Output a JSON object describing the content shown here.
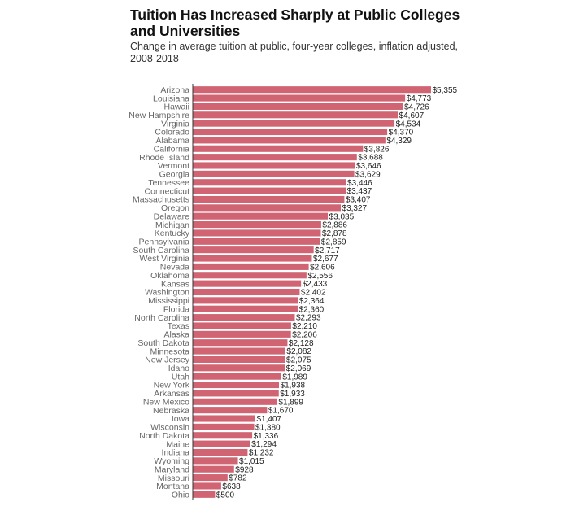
{
  "chart_data": {
    "type": "bar",
    "orientation": "horizontal",
    "title": "Tuition Has Increased Sharply at Public Colleges and Universities",
    "subtitle": "Change in average tuition at public, four-year colleges, inflation adjusted, 2008-2018",
    "xlabel": "",
    "ylabel": "",
    "value_prefix": "$",
    "bar_color": "#d06472",
    "grid": false,
    "xlim": [
      0,
      5355
    ],
    "categories": [
      "Arizona",
      "Louisiana",
      "Hawaii",
      "New Hampshire",
      "Virginia",
      "Colorado",
      "Alabama",
      "California",
      "Rhode Island",
      "Vermont",
      "Georgia",
      "Tennessee",
      "Connecticut",
      "Massachusetts",
      "Oregon",
      "Delaware",
      "Michigan",
      "Kentucky",
      "Pennsylvania",
      "South Carolina",
      "West Virginia",
      "Nevada",
      "Oklahoma",
      "Kansas",
      "Washington",
      "Mississippi",
      "Florida",
      "North Carolina",
      "Texas",
      "Alaska",
      "South Dakota",
      "Minnesota",
      "New Jersey",
      "Idaho",
      "Utah",
      "New York",
      "Arkansas",
      "New Mexico",
      "Nebraska",
      "Iowa",
      "Wisconsin",
      "North Dakota",
      "Maine",
      "Indiana",
      "Wyoming",
      "Maryland",
      "Missouri",
      "Montana",
      "Ohio"
    ],
    "values": [
      5355,
      4773,
      4726,
      4607,
      4534,
      4370,
      4329,
      3826,
      3688,
      3646,
      3629,
      3446,
      3437,
      3407,
      3327,
      3035,
      2886,
      2878,
      2859,
      2717,
      2677,
      2606,
      2556,
      2433,
      2402,
      2364,
      2360,
      2293,
      2210,
      2206,
      2128,
      2082,
      2075,
      2069,
      1989,
      1938,
      1933,
      1899,
      1670,
      1407,
      1380,
      1336,
      1294,
      1232,
      1015,
      928,
      782,
      638,
      500
    ]
  }
}
